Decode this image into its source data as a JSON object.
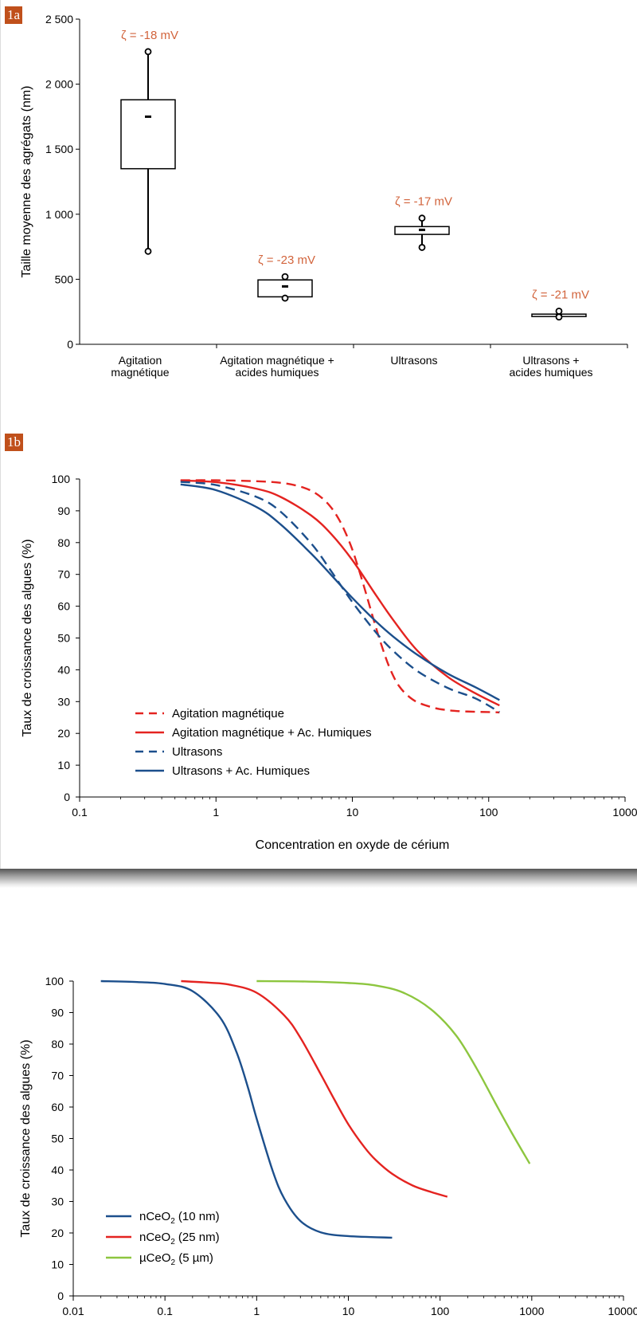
{
  "panels": {
    "a": "1a",
    "b": "1b"
  },
  "colors": {
    "accent": "#c0501b",
    "red": "#e42320",
    "blue": "#1c4f8c",
    "green": "#8dc63f",
    "zeta": "#d2643c"
  },
  "chart_data": [
    {
      "type": "box",
      "ylabel": "Taille moyenne des agrégats (nm)",
      "ylim": [
        0,
        2500
      ],
      "yticks": [
        {
          "v": 0,
          "label": "0"
        },
        {
          "v": 500,
          "label": "500"
        },
        {
          "v": 1000,
          "label": "1 000"
        },
        {
          "v": 1500,
          "label": "1 500"
        },
        {
          "v": 2000,
          "label": "2 000"
        },
        {
          "v": 2500,
          "label": "2 500"
        }
      ],
      "grid": false,
      "groups": [
        {
          "label": [
            "Agitation",
            "magnétique"
          ],
          "min": 715,
          "q1": 1350,
          "mean": 1750,
          "q3": 1880,
          "max": 2250,
          "zeta": "ζ = -18 mV"
        },
        {
          "label": [
            "Agitation magnétique +",
            "acides humiques"
          ],
          "min": 355,
          "q1": 365,
          "mean": 445,
          "q3": 495,
          "max": 520,
          "zeta": "ζ = -23 mV"
        },
        {
          "label": [
            "Ultrasons"
          ],
          "min": 745,
          "q1": 845,
          "mean": 880,
          "q3": 905,
          "max": 970,
          "zeta": "ζ = -17 mV"
        },
        {
          "label": [
            "Ultrasons +",
            "acides humiques"
          ],
          "min": 210,
          "q1": 218,
          "mean": 225,
          "q3": 232,
          "max": 255,
          "zeta": "ζ = -21 mV"
        }
      ]
    },
    {
      "type": "line",
      "xscale": "log",
      "xlabel": "Concentration en oxyde de cérium",
      "ylabel": "Taux de croissance des algues (%)",
      "xlim": [
        0.1,
        1000
      ],
      "ylim": [
        0,
        100
      ],
      "xticks": [
        {
          "v": 0.1,
          "label": "0.1"
        },
        {
          "v": 1,
          "label": "1"
        },
        {
          "v": 10,
          "label": "10"
        },
        {
          "v": 100,
          "label": "100"
        },
        {
          "v": 1000,
          "label": "1000"
        }
      ],
      "yticks": [
        0,
        10,
        20,
        30,
        40,
        50,
        60,
        70,
        80,
        90,
        100
      ],
      "legend": "bottom-left",
      "series": [
        {
          "name": "Agitation magnétique",
          "color": "#e42320",
          "dash": true,
          "x": [
            0.55,
            1,
            2,
            3,
            4,
            5,
            6,
            7,
            8,
            9,
            10,
            11,
            12,
            13,
            14,
            15,
            16,
            18,
            20,
            22,
            25,
            30,
            40,
            50,
            60,
            80,
            100,
            120
          ],
          "y": [
            99.6,
            99.6,
            99.3,
            98.8,
            97.8,
            96.3,
            94,
            91,
            87.2,
            82.7,
            77.8,
            72.4,
            67.1,
            62,
            57.2,
            52.9,
            49,
            42.6,
            38,
            34.9,
            32.2,
            29.8,
            28,
            27.3,
            27,
            26.8,
            26.7,
            26.6
          ]
        },
        {
          "name": "Agitation magnétique + Ac. Humiques",
          "color": "#e42320",
          "dash": false,
          "x": [
            0.55,
            1,
            2,
            3,
            5,
            7,
            10,
            15,
            20,
            30,
            50,
            80,
            120
          ],
          "y": [
            99.5,
            99,
            96.9,
            94.3,
            88.5,
            82.7,
            74.5,
            63.3,
            55.6,
            46,
            37.8,
            32.6,
            28.8
          ]
        },
        {
          "name": "Ultrasons",
          "color": "#1c4f8c",
          "dash": true,
          "x": [
            0.55,
            1,
            2,
            3,
            5,
            7,
            10,
            15,
            20,
            30,
            50,
            80,
            120
          ],
          "y": [
            99.1,
            98.1,
            94.3,
            89.6,
            79.7,
            71,
            61.3,
            51.6,
            45.9,
            39.6,
            34.3,
            31,
            26.7
          ]
        },
        {
          "name": "Ultrasons + Ac. Humiques",
          "color": "#1c4f8c",
          "dash": false,
          "x": [
            0.55,
            1,
            2,
            3,
            5,
            7,
            10,
            15,
            20,
            30,
            50,
            80,
            120
          ],
          "y": [
            98.3,
            96.5,
            91.1,
            85.6,
            76.5,
            69.8,
            62.6,
            55.1,
            50.4,
            44.7,
            38.8,
            34.5,
            30.5
          ]
        }
      ]
    },
    {
      "type": "line",
      "xscale": "log",
      "xlabel": "",
      "ylabel": "Taux de croissance des algues (%)",
      "xlim": [
        0.01,
        10000
      ],
      "ylim": [
        0,
        100
      ],
      "xticks": [
        {
          "v": 0.01,
          "label": "0.01"
        },
        {
          "v": 0.1,
          "label": "0.1"
        },
        {
          "v": 1,
          "label": "1"
        },
        {
          "v": 10,
          "label": "10"
        },
        {
          "v": 100,
          "label": "100"
        },
        {
          "v": 1000,
          "label": "1000"
        },
        {
          "v": 10000,
          "label": "10000"
        }
      ],
      "yticks": [
        0,
        10,
        20,
        30,
        40,
        50,
        60,
        70,
        80,
        90,
        100
      ],
      "legend": "bottom-left",
      "series": [
        {
          "name": "nCeO",
          "sub": "2",
          "tail": " (10 nm)",
          "color": "#1c4f8c",
          "x": [
            0.02,
            0.05,
            0.1,
            0.2,
            0.4,
            0.6,
            0.8,
            1,
            1.5,
            2,
            3,
            5,
            10,
            30
          ],
          "y": [
            100,
            99.7,
            99.1,
            96.8,
            88.4,
            77.6,
            66.4,
            56.3,
            39.6,
            30.9,
            23.8,
            20.2,
            19,
            18.5
          ]
        },
        {
          "name": "nCeO",
          "sub": "2",
          "tail": " (25 nm)",
          "color": "#e42320",
          "x": [
            0.15,
            0.3,
            0.5,
            1,
            2,
            3,
            5,
            7,
            10,
            15,
            20,
            30,
            50,
            80,
            120
          ],
          "y": [
            100,
            99.5,
            98.9,
            96.3,
            89.1,
            82,
            70.4,
            62.5,
            54.5,
            47.2,
            43.1,
            38.8,
            35.1,
            33,
            31.5
          ]
        },
        {
          "name": "µCeO",
          "sub": "2",
          "tail": " (5 µm)",
          "color": "#8dc63f",
          "x": [
            1,
            3,
            10,
            20,
            40,
            80,
            150,
            250,
            400,
            600,
            950
          ],
          "y": [
            100,
            99.9,
            99.4,
            98.6,
            96.3,
            91,
            82.7,
            72.3,
            61.3,
            52,
            42
          ]
        }
      ]
    }
  ]
}
